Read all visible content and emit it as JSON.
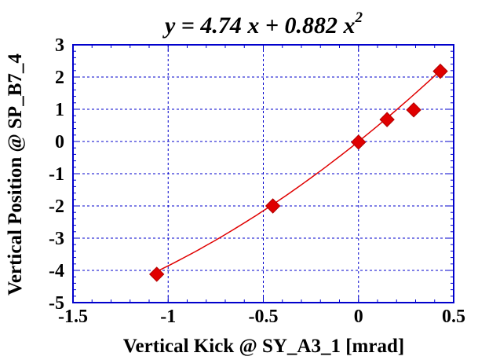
{
  "chart_data": {
    "type": "scatter",
    "title": {
      "prefix": "y = 4.74 x + 0.882 x",
      "superscript": "2"
    },
    "xlabel": "Vertical Kick @ SY_A3_1 [mrad]",
    "ylabel": "Vertical Position @ SP_B7_4",
    "xlim": [
      -1.5,
      0.5
    ],
    "ylim": [
      -5,
      3
    ],
    "xticks": [
      -1.5,
      -1,
      -0.5,
      0,
      0.5
    ],
    "xtick_labels": [
      "-1.5",
      "-1",
      "-0.5",
      "0",
      "0.5"
    ],
    "yticks": [
      -5,
      -4,
      -3,
      -2,
      -1,
      0,
      1,
      2,
      3
    ],
    "ytick_labels": [
      "-5",
      "-4",
      "-3",
      "-2",
      "-1",
      "0",
      "1",
      "2",
      "3"
    ],
    "grid": true,
    "series": [
      {
        "marker": "diamond",
        "color": "#e00000",
        "x": [
          -1.06,
          -0.45,
          0.0,
          0.15,
          0.29,
          0.43
        ],
        "y": [
          -4.12,
          -2.0,
          -0.02,
          0.68,
          0.98,
          2.18
        ]
      }
    ],
    "fit": {
      "color": "#e00000",
      "coefficients": {
        "a": 4.74,
        "b": 0.882
      },
      "x_range": [
        -1.06,
        0.43
      ]
    }
  }
}
